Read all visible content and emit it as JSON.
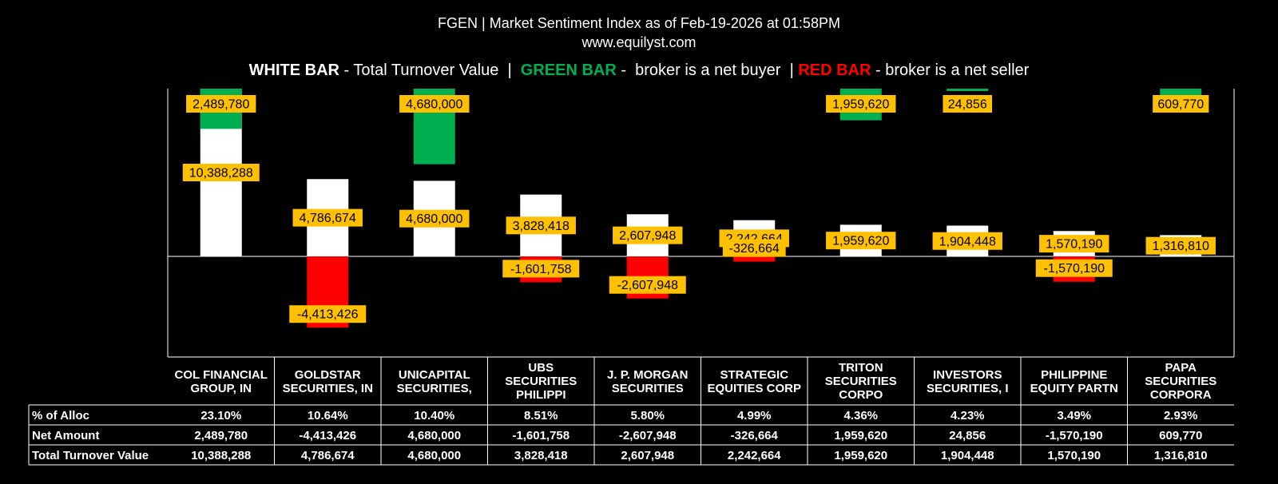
{
  "header": {
    "title": "FGEN | Market Sentiment Index as of Feb-19-2026 at 01:58PM",
    "site": "www.equilyst.com",
    "legend": {
      "white_label": "WHITE BAR",
      "white_text": " - Total Turnover Value  |  ",
      "green_label": "GREEN BAR",
      "green_text": " -  broker is a net buyer  | ",
      "red_label": "RED BAR",
      "red_text": " - broker is a net seller"
    }
  },
  "colors": {
    "white_bar": "#ffffff",
    "green_bar": "#00b050",
    "red_bar": "#ff0000",
    "label_bg": "#ffc000",
    "background": "#000000"
  },
  "chart_data": {
    "type": "bar",
    "categories": [
      [
        "COL FINANCIAL",
        "GROUP, IN"
      ],
      [
        "GOLDSTAR",
        "SECURITIES, IN"
      ],
      [
        "UNICAPITAL",
        "SECURITIES,"
      ],
      [
        "UBS",
        "SECURITIES",
        "PHILIPPI"
      ],
      [
        "J. P. MORGAN",
        "SECURITIES"
      ],
      [
        "STRATEGIC",
        "EQUITIES CORP"
      ],
      [
        "TRITON",
        "SECURITIES",
        "CORPO"
      ],
      [
        "INVESTORS",
        "SECURITIES, I"
      ],
      [
        "PHILIPPINE",
        "EQUITY PARTN"
      ],
      [
        "PAPA",
        "SECURITIES",
        "CORPORA"
      ]
    ],
    "series": [
      {
        "name": "Total Turnover Value",
        "values": [
          10388288,
          4786674,
          4680000,
          3828418,
          2607948,
          2242664,
          1959620,
          1904448,
          1570190,
          1316810
        ]
      },
      {
        "name": "Net Amount",
        "values": [
          2489780,
          -4413426,
          4680000,
          -1601758,
          -2607948,
          -326664,
          1959620,
          24856,
          -1570190,
          609770
        ]
      }
    ],
    "value_labels": {
      "turnover": [
        "10,388,288",
        "4,786,674",
        "4,680,000",
        "3,828,418",
        "2,607,948",
        "2,242,664",
        "1,959,620",
        "1,904,448",
        "1,570,190",
        "1,316,810"
      ],
      "net": [
        "2,489,780",
        "-4,413,426",
        "4,680,000",
        "-1,601,758",
        "-2,607,948",
        "-326,664",
        "1,959,620",
        "24,856",
        "-1,570,190",
        "609,770"
      ]
    },
    "ylim": [
      -5800000,
      10388288
    ]
  },
  "table": {
    "rows": [
      {
        "label": "% of Alloc",
        "values": [
          "23.10%",
          "10.64%",
          "10.40%",
          "8.51%",
          "5.80%",
          "4.99%",
          "4.36%",
          "4.23%",
          "3.49%",
          "2.93%"
        ]
      },
      {
        "label": "Net Amount",
        "values": [
          "2,489,780",
          "-4,413,426",
          "4,680,000",
          "-1,601,758",
          "-2,607,948",
          "-326,664",
          "1,959,620",
          "24,856",
          "-1,570,190",
          "609,770"
        ]
      },
      {
        "label": "Total Turnover Value",
        "values": [
          "10,388,288",
          "4,786,674",
          "4,680,000",
          "3,828,418",
          "2,607,948",
          "2,242,664",
          "1,959,620",
          "1,904,448",
          "1,570,190",
          "1,316,810"
        ]
      }
    ]
  }
}
